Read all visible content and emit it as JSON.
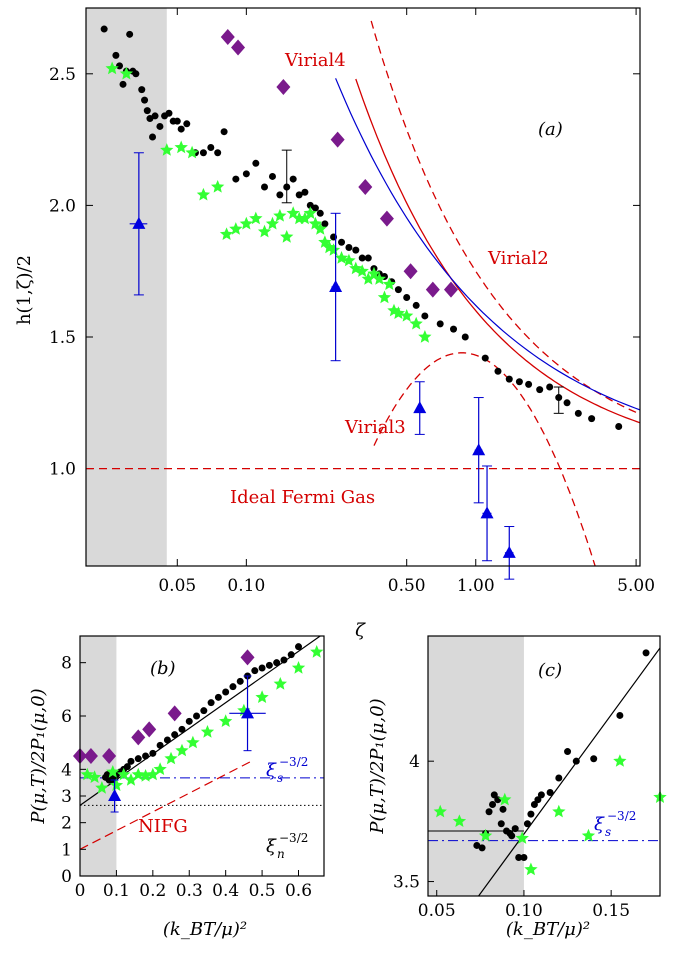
{
  "chart_data": [
    {
      "panel": "(a)",
      "type": "scatter",
      "xlabel": "ζ",
      "ylabel": "h(1,ζ)/2",
      "xscale": "log",
      "xlim": [
        0.02,
        5.2
      ],
      "ylim": [
        0.63,
        2.75
      ],
      "xticks": [
        "0.05",
        "0.10",
        "0.50",
        "1.00",
        "5.00"
      ],
      "xtick_values": [
        0.05,
        0.1,
        0.5,
        1.0,
        5.0
      ],
      "yticks": [
        "1.0",
        "1.5",
        "2.0",
        "2.5"
      ],
      "ytick_values": [
        1.0,
        1.5,
        2.0,
        2.5
      ],
      "shaded_region_x": [
        0.02,
        0.045
      ],
      "curve_labels": {
        "virial4": "Virial4",
        "virial2": "Virial2",
        "virial3": "Virial3",
        "ideal": "Ideal Fermi Gas"
      },
      "series": [
        {
          "marker": "circle",
          "color": "#000000",
          "x": [
            0.024,
            0.027,
            0.028,
            0.029,
            0.03,
            0.031,
            0.032,
            0.033,
            0.035,
            0.036,
            0.037,
            0.038,
            0.039,
            0.04,
            0.042,
            0.044,
            0.046,
            0.048,
            0.05,
            0.052,
            0.055,
            0.06,
            0.065,
            0.07,
            0.075,
            0.08,
            0.09,
            0.1,
            0.11,
            0.12,
            0.13,
            0.14,
            0.15,
            0.16,
            0.17,
            0.18,
            0.19,
            0.2,
            0.21,
            0.22,
            0.24,
            0.26,
            0.28,
            0.3,
            0.32,
            0.34,
            0.36,
            0.38,
            0.4,
            0.43,
            0.46,
            0.5,
            0.55,
            0.6,
            0.7,
            0.8,
            0.9,
            1.1,
            1.25,
            1.4,
            1.55,
            1.7,
            1.9,
            2.1,
            2.3,
            2.5,
            2.8,
            3.2,
            4.2
          ],
          "y": [
            2.67,
            2.57,
            2.53,
            2.46,
            2.51,
            2.65,
            2.51,
            2.5,
            2.44,
            2.4,
            2.36,
            2.33,
            2.26,
            2.34,
            2.3,
            2.34,
            2.35,
            2.32,
            2.32,
            2.29,
            2.31,
            2.2,
            2.2,
            2.22,
            2.2,
            2.28,
            2.1,
            2.12,
            2.16,
            2.07,
            2.11,
            2.04,
            2.07,
            2.1,
            2.04,
            2.05,
            2.0,
            1.99,
            1.97,
            1.93,
            1.88,
            1.86,
            1.84,
            1.83,
            1.8,
            1.8,
            1.76,
            1.74,
            1.73,
            1.71,
            1.68,
            1.65,
            1.62,
            1.58,
            1.55,
            1.53,
            1.5,
            1.42,
            1.37,
            1.34,
            1.33,
            1.32,
            1.3,
            1.31,
            1.27,
            1.25,
            1.21,
            1.19,
            1.16
          ]
        },
        {
          "marker": "star",
          "color": "#33ff33",
          "x": [
            0.026,
            0.03,
            0.045,
            0.052,
            0.058,
            0.065,
            0.075,
            0.082,
            0.09,
            0.1,
            0.11,
            0.12,
            0.13,
            0.14,
            0.15,
            0.16,
            0.17,
            0.18,
            0.19,
            0.2,
            0.21,
            0.22,
            0.23,
            0.24,
            0.26,
            0.28,
            0.3,
            0.32,
            0.34,
            0.36,
            0.38,
            0.4,
            0.42,
            0.44,
            0.46,
            0.5,
            0.55,
            0.6
          ],
          "y": [
            2.52,
            2.5,
            2.21,
            2.22,
            2.2,
            2.04,
            2.07,
            1.89,
            1.91,
            1.93,
            1.95,
            1.9,
            1.93,
            1.96,
            1.88,
            1.97,
            1.95,
            1.95,
            1.97,
            1.93,
            1.91,
            1.86,
            1.84,
            1.83,
            1.8,
            1.79,
            1.76,
            1.75,
            1.72,
            1.74,
            1.72,
            1.65,
            1.7,
            1.6,
            1.59,
            1.58,
            1.55,
            1.5
          ]
        },
        {
          "marker": "diamond",
          "color": "#7a1a8c",
          "x": [
            0.083,
            0.092,
            0.145,
            0.25,
            0.33,
            0.41,
            0.52,
            0.65,
            0.78
          ],
          "y": [
            2.64,
            2.6,
            2.45,
            2.25,
            2.07,
            1.95,
            1.75,
            1.68,
            1.68
          ]
        },
        {
          "marker": "triangle",
          "color": "#0000e0",
          "x": [
            0.034,
            0.245,
            0.57,
            1.03,
            1.12,
            1.4
          ],
          "y": [
            1.93,
            1.69,
            1.23,
            1.07,
            0.83,
            0.68
          ],
          "yerr": [
            0.27,
            0.28,
            0.1,
            0.2,
            0.18,
            0.1
          ],
          "xerr": [
            0.003,
            0.01,
            0.015,
            0.04,
            0.05,
            0.06
          ]
        }
      ]
    },
    {
      "panel": "(b)",
      "type": "scatter",
      "xlabel": "(k_B T/μ)^2",
      "ylabel": "P(μ,T)/2P_1(μ,0)",
      "xlim": [
        0,
        0.67
      ],
      "ylim": [
        0,
        9
      ],
      "xticks": [
        "0",
        "0.1",
        "0.2",
        "0.3",
        "0.4",
        "0.5",
        "0.6"
      ],
      "yticks": [
        "0",
        "1",
        "2",
        "3",
        "4",
        "6",
        "8"
      ],
      "shaded_region_x": [
        0,
        0.1
      ],
      "labels": {
        "nifg": "NIFG",
        "xi_s": "ξ_s^-3/2",
        "xi_n": "ξ_n^-3/2"
      },
      "lines": {
        "fit": [
          [
            0,
            2.65
          ],
          [
            0.67,
            9.1
          ]
        ],
        "nifg": [
          [
            0,
            1.0
          ],
          [
            0.47,
            4.3
          ]
        ],
        "xi_s": 3.68,
        "xi_n": 2.65
      },
      "series": [
        {
          "marker": "circle",
          "x": [
            0.07,
            0.075,
            0.08,
            0.085,
            0.09,
            0.095,
            0.1,
            0.11,
            0.12,
            0.13,
            0.14,
            0.16,
            0.18,
            0.2,
            0.22,
            0.24,
            0.26,
            0.28,
            0.3,
            0.32,
            0.34,
            0.36,
            0.38,
            0.4,
            0.42,
            0.44,
            0.46,
            0.48,
            0.5,
            0.52,
            0.54,
            0.56,
            0.58,
            0.6
          ],
          "y": [
            3.7,
            3.8,
            3.6,
            3.7,
            3.55,
            3.75,
            3.8,
            3.9,
            4.0,
            4.1,
            4.3,
            4.4,
            4.5,
            4.6,
            4.9,
            5.1,
            5.3,
            5.5,
            5.8,
            6.0,
            6.2,
            6.5,
            6.7,
            6.9,
            7.1,
            7.3,
            7.5,
            7.7,
            7.8,
            7.9,
            8.0,
            8.1,
            8.3,
            8.6
          ]
        },
        {
          "marker": "star",
          "x": [
            0.02,
            0.04,
            0.06,
            0.09,
            0.1,
            0.12,
            0.14,
            0.16,
            0.18,
            0.2,
            0.22,
            0.25,
            0.28,
            0.31,
            0.35,
            0.4,
            0.45,
            0.5,
            0.55,
            0.6,
            0.65
          ],
          "y": [
            3.8,
            3.7,
            3.3,
            3.9,
            3.4,
            3.8,
            3.6,
            3.8,
            3.75,
            3.8,
            4.0,
            4.4,
            4.7,
            5.0,
            5.4,
            5.8,
            6.2,
            6.7,
            7.2,
            7.8,
            8.4
          ]
        },
        {
          "marker": "diamond",
          "x": [
            0.0,
            0.03,
            0.08,
            0.16,
            0.19,
            0.26,
            0.46
          ],
          "y": [
            4.5,
            4.5,
            4.5,
            5.2,
            5.5,
            6.1,
            8.2
          ]
        },
        {
          "marker": "triangle",
          "x": [
            0.095,
            0.46
          ],
          "y": [
            3.0,
            6.1
          ],
          "yerr": [
            0.6,
            1.4
          ],
          "xerr": [
            0,
            0.05
          ]
        }
      ]
    },
    {
      "panel": "(c)",
      "type": "scatter",
      "xlabel": "(k_B T/μ)^2",
      "ylabel": "P(μ,T)/2P_1(μ,0)",
      "xlim": [
        0.045,
        0.178
      ],
      "ylim": [
        3.44,
        4.52
      ],
      "xticks": [
        "0.05",
        "0.10",
        "0.15"
      ],
      "yticks": [
        "3.5",
        "4"
      ],
      "shaded_region_x": [
        0.045,
        0.1
      ],
      "labels": {
        "xi_s": "ξ_s^-3/2"
      },
      "lines": {
        "fit": [
          [
            0.074,
            3.44
          ],
          [
            0.178,
            4.47
          ]
        ],
        "xi_s": 3.67,
        "black_short": 3.71
      },
      "series": [
        {
          "marker": "circle",
          "x": [
            0.073,
            0.076,
            0.078,
            0.08,
            0.082,
            0.083,
            0.085,
            0.087,
            0.088,
            0.09,
            0.092,
            0.093,
            0.095,
            0.097,
            0.1,
            0.102,
            0.104,
            0.106,
            0.108,
            0.11,
            0.115,
            0.12,
            0.125,
            0.13,
            0.14,
            0.155,
            0.17
          ],
          "y": [
            3.65,
            3.64,
            3.7,
            3.79,
            3.82,
            3.86,
            3.84,
            3.74,
            3.8,
            3.71,
            3.7,
            3.69,
            3.72,
            3.6,
            3.6,
            3.74,
            3.78,
            3.82,
            3.84,
            3.86,
            3.87,
            3.93,
            4.04,
            4.0,
            4.01,
            4.19,
            4.45
          ]
        },
        {
          "marker": "star",
          "x": [
            0.052,
            0.063,
            0.078,
            0.089,
            0.099,
            0.104,
            0.12,
            0.137,
            0.155,
            0.178
          ],
          "y": [
            3.79,
            3.75,
            3.69,
            3.84,
            3.68,
            3.55,
            3.79,
            3.69,
            4.0,
            3.85
          ]
        }
      ]
    }
  ],
  "panel_labels": {
    "a": "(a)",
    "b": "(b)",
    "c": "(c)"
  }
}
